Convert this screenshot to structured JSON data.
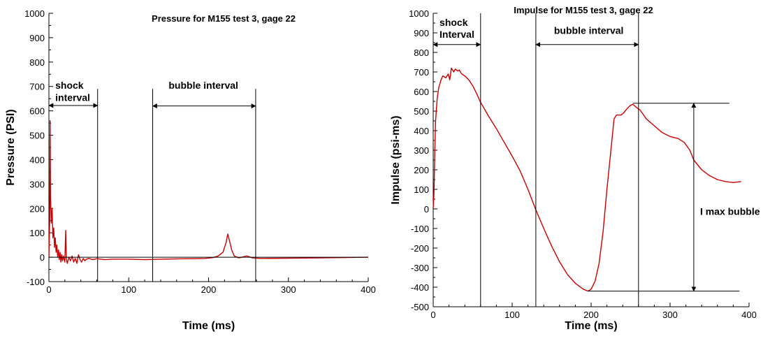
{
  "chart_data": [
    {
      "type": "line",
      "title": "Pressure for M155 test 3, gage 22",
      "xlabel": "Time (ms)",
      "ylabel": "Pressure (PSI)",
      "xlim": [
        0,
        400
      ],
      "ylim": [
        -100,
        1000
      ],
      "xticks": [
        "0",
        "100",
        "200",
        "300",
        "400"
      ],
      "yticks": [
        "-100",
        "0",
        "100",
        "200",
        "300",
        "400",
        "500",
        "600",
        "700",
        "800",
        "900",
        "1000"
      ],
      "grid": false,
      "series": [
        {
          "color": "#cc0000",
          "points": [
            [
              0,
              0
            ],
            [
              1,
              150
            ],
            [
              1.5,
              560
            ],
            [
              2,
              250
            ],
            [
              3,
              140
            ],
            [
              4,
              200
            ],
            [
              5,
              80
            ],
            [
              6,
              120
            ],
            [
              7,
              40
            ],
            [
              8,
              80
            ],
            [
              9,
              20
            ],
            [
              10,
              50
            ],
            [
              11,
              0
            ],
            [
              12,
              30
            ],
            [
              13,
              -10
            ],
            [
              14,
              20
            ],
            [
              15,
              -20
            ],
            [
              16,
              10
            ],
            [
              17,
              -15
            ],
            [
              18,
              5
            ],
            [
              19,
              -10
            ],
            [
              20,
              -20
            ],
            [
              21,
              110
            ],
            [
              22,
              -10
            ],
            [
              23,
              -25
            ],
            [
              25,
              0
            ],
            [
              27,
              -15
            ],
            [
              29,
              5
            ],
            [
              31,
              -20
            ],
            [
              33,
              -5
            ],
            [
              35,
              -25
            ],
            [
              37,
              10
            ],
            [
              39,
              -10
            ],
            [
              41,
              -20
            ],
            [
              43,
              -5
            ],
            [
              45,
              -15
            ],
            [
              47,
              -8
            ],
            [
              50,
              -5
            ],
            [
              55,
              -10
            ],
            [
              60,
              -6
            ],
            [
              70,
              -10
            ],
            [
              80,
              -8
            ],
            [
              100,
              -8
            ],
            [
              120,
              -10
            ],
            [
              140,
              -8
            ],
            [
              160,
              -7
            ],
            [
              180,
              -6
            ],
            [
              195,
              -5
            ],
            [
              205,
              -2
            ],
            [
              212,
              5
            ],
            [
              218,
              20
            ],
            [
              222,
              60
            ],
            [
              224,
              95
            ],
            [
              226,
              70
            ],
            [
              229,
              30
            ],
            [
              232,
              5
            ],
            [
              238,
              -3
            ],
            [
              248,
              5
            ],
            [
              255,
              -3
            ],
            [
              265,
              -5
            ],
            [
              300,
              -4
            ],
            [
              340,
              -3
            ],
            [
              380,
              -1
            ],
            [
              400,
              0
            ]
          ]
        },
        {
          "color": "#000000",
          "points": [
            [
              0,
              0
            ],
            [
              400,
              0
            ]
          ]
        }
      ],
      "annotations": [
        {
          "text": "shock",
          "x": 8,
          "y": 690
        },
        {
          "text": "interval",
          "x": 8,
          "y": 640
        },
        {
          "text": "bubble interval",
          "x": 150,
          "y": 690
        }
      ],
      "intervals": [
        {
          "name": "shock interval",
          "start": 0,
          "end": 61,
          "y": 622
        },
        {
          "name": "bubble interval",
          "start": 130,
          "end": 259,
          "y": 620
        }
      ],
      "vlines": [
        {
          "x": 61,
          "ymin": -100,
          "ymax": 690
        },
        {
          "x": 130,
          "ymin": -100,
          "ymax": 690
        },
        {
          "x": 259,
          "ymin": -100,
          "ymax": 690
        }
      ]
    },
    {
      "type": "line",
      "title": "Impulse for M155 test 3, gage 22",
      "xlabel": "Time (ms)",
      "ylabel": "Impulse (psi-ms)",
      "xlim": [
        0,
        400
      ],
      "ylim": [
        -500,
        1000
      ],
      "xticks": [
        "0",
        "100",
        "200",
        "300",
        "400"
      ],
      "yticks": [
        "-500",
        "-400",
        "-300",
        "-200",
        "-100",
        "0",
        "100",
        "200",
        "300",
        "400",
        "500",
        "600",
        "700",
        "800",
        "900",
        "1000"
      ],
      "grid": false,
      "series": [
        {
          "color": "#cc0000",
          "points": [
            [
              0,
              0
            ],
            [
              1,
              80
            ],
            [
              2,
              300
            ],
            [
              3,
              450
            ],
            [
              5,
              560
            ],
            [
              7,
              620
            ],
            [
              10,
              660
            ],
            [
              12,
              680
            ],
            [
              16,
              670
            ],
            [
              19,
              690
            ],
            [
              21,
              660
            ],
            [
              23,
              720
            ],
            [
              26,
              700
            ],
            [
              28,
              715
            ],
            [
              31,
              705
            ],
            [
              33,
              710
            ],
            [
              36,
              690
            ],
            [
              40,
              680
            ],
            [
              45,
              660
            ],
            [
              50,
              630
            ],
            [
              55,
              590
            ],
            [
              60,
              545
            ],
            [
              70,
              475
            ],
            [
              80,
              410
            ],
            [
              90,
              340
            ],
            [
              100,
              270
            ],
            [
              110,
              195
            ],
            [
              120,
              100
            ],
            [
              130,
              -5
            ],
            [
              140,
              -100
            ],
            [
              150,
              -190
            ],
            [
              160,
              -270
            ],
            [
              170,
              -335
            ],
            [
              180,
              -380
            ],
            [
              190,
              -410
            ],
            [
              196,
              -420
            ],
            [
              200,
              -410
            ],
            [
              205,
              -370
            ],
            [
              210,
              -280
            ],
            [
              215,
              -120
            ],
            [
              220,
              100
            ],
            [
              225,
              300
            ],
            [
              229,
              460
            ],
            [
              232,
              480
            ],
            [
              238,
              480
            ],
            [
              241,
              490
            ],
            [
              246,
              515
            ],
            [
              250,
              530
            ],
            [
              253,
              535
            ],
            [
              257,
              520
            ],
            [
              262,
              505
            ],
            [
              270,
              460
            ],
            [
              280,
              425
            ],
            [
              290,
              390
            ],
            [
              300,
              370
            ],
            [
              310,
              360
            ],
            [
              318,
              340
            ],
            [
              325,
              300
            ],
            [
              330,
              250
            ],
            [
              340,
              200
            ],
            [
              350,
              170
            ],
            [
              360,
              150
            ],
            [
              370,
              140
            ],
            [
              380,
              135
            ],
            [
              390,
              140
            ]
          ]
        }
      ],
      "annotations": [
        {
          "text": "shock",
          "x": 8,
          "y": 935
        },
        {
          "text": "Interval",
          "x": 8,
          "y": 875
        },
        {
          "text": "bubble interval",
          "x": 153,
          "y": 895
        },
        {
          "text": "I max bubble",
          "x": 338,
          "y": -30
        }
      ],
      "intervals": [
        {
          "name": "shock interval",
          "start": 0,
          "end": 60,
          "y": 840
        },
        {
          "name": "bubble interval",
          "start": 130,
          "end": 260,
          "y": 840
        }
      ],
      "vlines": [
        {
          "x": 60,
          "ymin": -500,
          "ymax": 1000
        },
        {
          "x": 130,
          "ymin": -500,
          "ymax": 1000
        },
        {
          "x": 260,
          "ymin": -500,
          "ymax": 1000
        }
      ],
      "hlines": [
        {
          "y": 540,
          "xmin": 253,
          "xmax": 375
        },
        {
          "y": -420,
          "xmin": 196,
          "xmax": 388
        }
      ],
      "magnitude_arrow": {
        "name": "I max bubble",
        "x": 330,
        "from": -420,
        "to": 540
      }
    }
  ]
}
